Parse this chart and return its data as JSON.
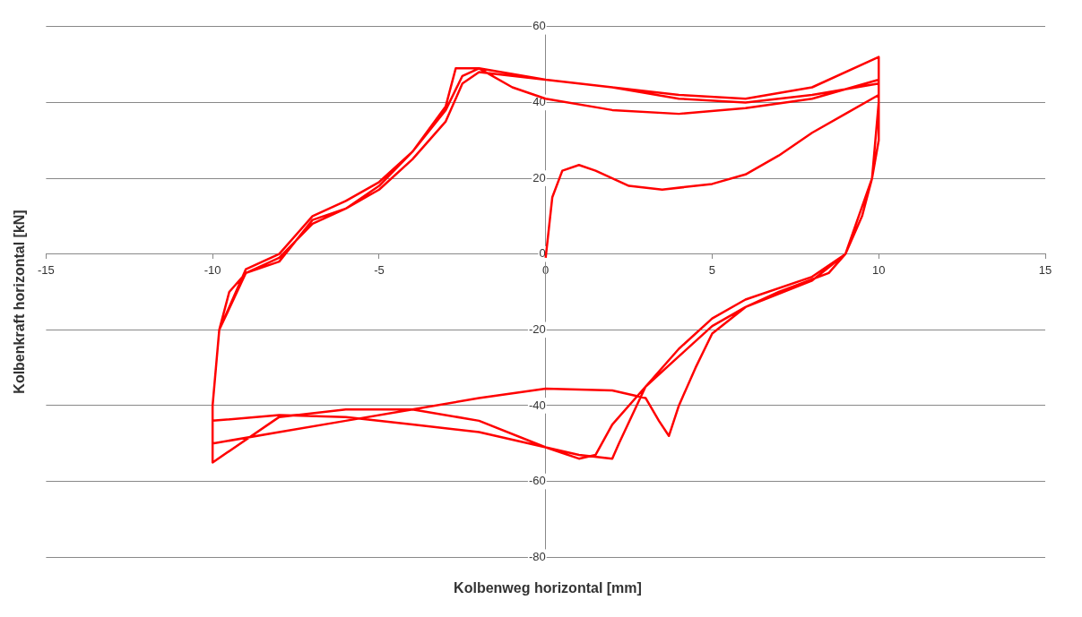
{
  "chart_data": {
    "type": "line",
    "xlabel": "Kolbenweg horizontal [mm]",
    "ylabel": "Kolbenkraft horizontal [kN]",
    "xlim": [
      -15,
      15
    ],
    "xticks": [
      -15,
      -10,
      -5,
      0,
      5,
      10,
      15
    ],
    "ylim": [
      -80,
      60
    ],
    "yticks": [
      -80,
      -60,
      -40,
      -20,
      0,
      20,
      40,
      60
    ],
    "grid": "y",
    "legend": false,
    "marker": "none",
    "line_style": "solid",
    "series": [
      {
        "color": "#ff0000",
        "x": [
          0,
          0.2,
          0.5,
          1,
          1.5,
          2.5,
          3.5,
          5,
          6,
          7,
          8,
          9,
          10,
          10,
          9.8,
          9.5,
          9,
          8.5,
          7,
          6,
          5,
          4.5,
          4,
          3.7,
          3.4,
          3,
          2,
          0,
          -2,
          -4,
          -6,
          -8,
          -10,
          -10,
          -9.8,
          -9.5,
          -9,
          -8,
          -7,
          -6,
          -5,
          -4,
          -3,
          -2.5,
          -2,
          0,
          2,
          4,
          6,
          8,
          10,
          10,
          9.8,
          9,
          8,
          6,
          5,
          4,
          3,
          2.2,
          2,
          1,
          0,
          -2,
          -4,
          -6,
          -8,
          -10,
          -10,
          -10,
          -9.8,
          -9,
          -8,
          -7,
          -6,
          -5,
          -4,
          -3,
          -2.5,
          -2,
          -1,
          0,
          2,
          4,
          6,
          8,
          10,
          10,
          9.8,
          9,
          8,
          6,
          5,
          4,
          3,
          2,
          1.5,
          1,
          0,
          -2,
          -4,
          -6,
          -8,
          -10,
          -10,
          -9.8,
          -9,
          -8,
          -7,
          -6,
          -5,
          -4,
          -3,
          -2.7,
          -2,
          0,
          2,
          4,
          6,
          8,
          10,
          10
        ],
        "values": [
          -1,
          15,
          22,
          23.5,
          22,
          18,
          17,
          18.5,
          21,
          26,
          32,
          37,
          42,
          30,
          20,
          10,
          0,
          -5,
          -10,
          -14,
          -21,
          -30,
          -40,
          -48,
          -44,
          -38,
          -36,
          -35.5,
          -38,
          -41,
          -44,
          -47,
          -50,
          -40,
          -20,
          -10,
          -5,
          -1,
          8,
          12,
          17,
          25,
          35,
          45,
          48,
          46,
          44,
          41,
          40,
          42,
          45,
          40,
          20,
          0,
          -6,
          -12,
          -17,
          -25,
          -35,
          -50,
          -54,
          -53,
          -51,
          -47,
          -45,
          -43,
          -42.5,
          -44,
          -52,
          -40,
          -20,
          -5,
          -2,
          9,
          12,
          18,
          27,
          38,
          47,
          49,
          44,
          41,
          38,
          37,
          38.5,
          41,
          46,
          40,
          20,
          0,
          -7,
          -14,
          -19,
          -27,
          -35,
          -45,
          -53,
          -54,
          -51,
          -44,
          -41,
          -41,
          -43,
          -55,
          -40,
          -20,
          -4,
          0,
          10,
          14,
          19,
          27,
          39,
          49,
          49,
          46,
          44,
          42,
          41,
          44,
          52,
          45
        ]
      }
    ]
  }
}
